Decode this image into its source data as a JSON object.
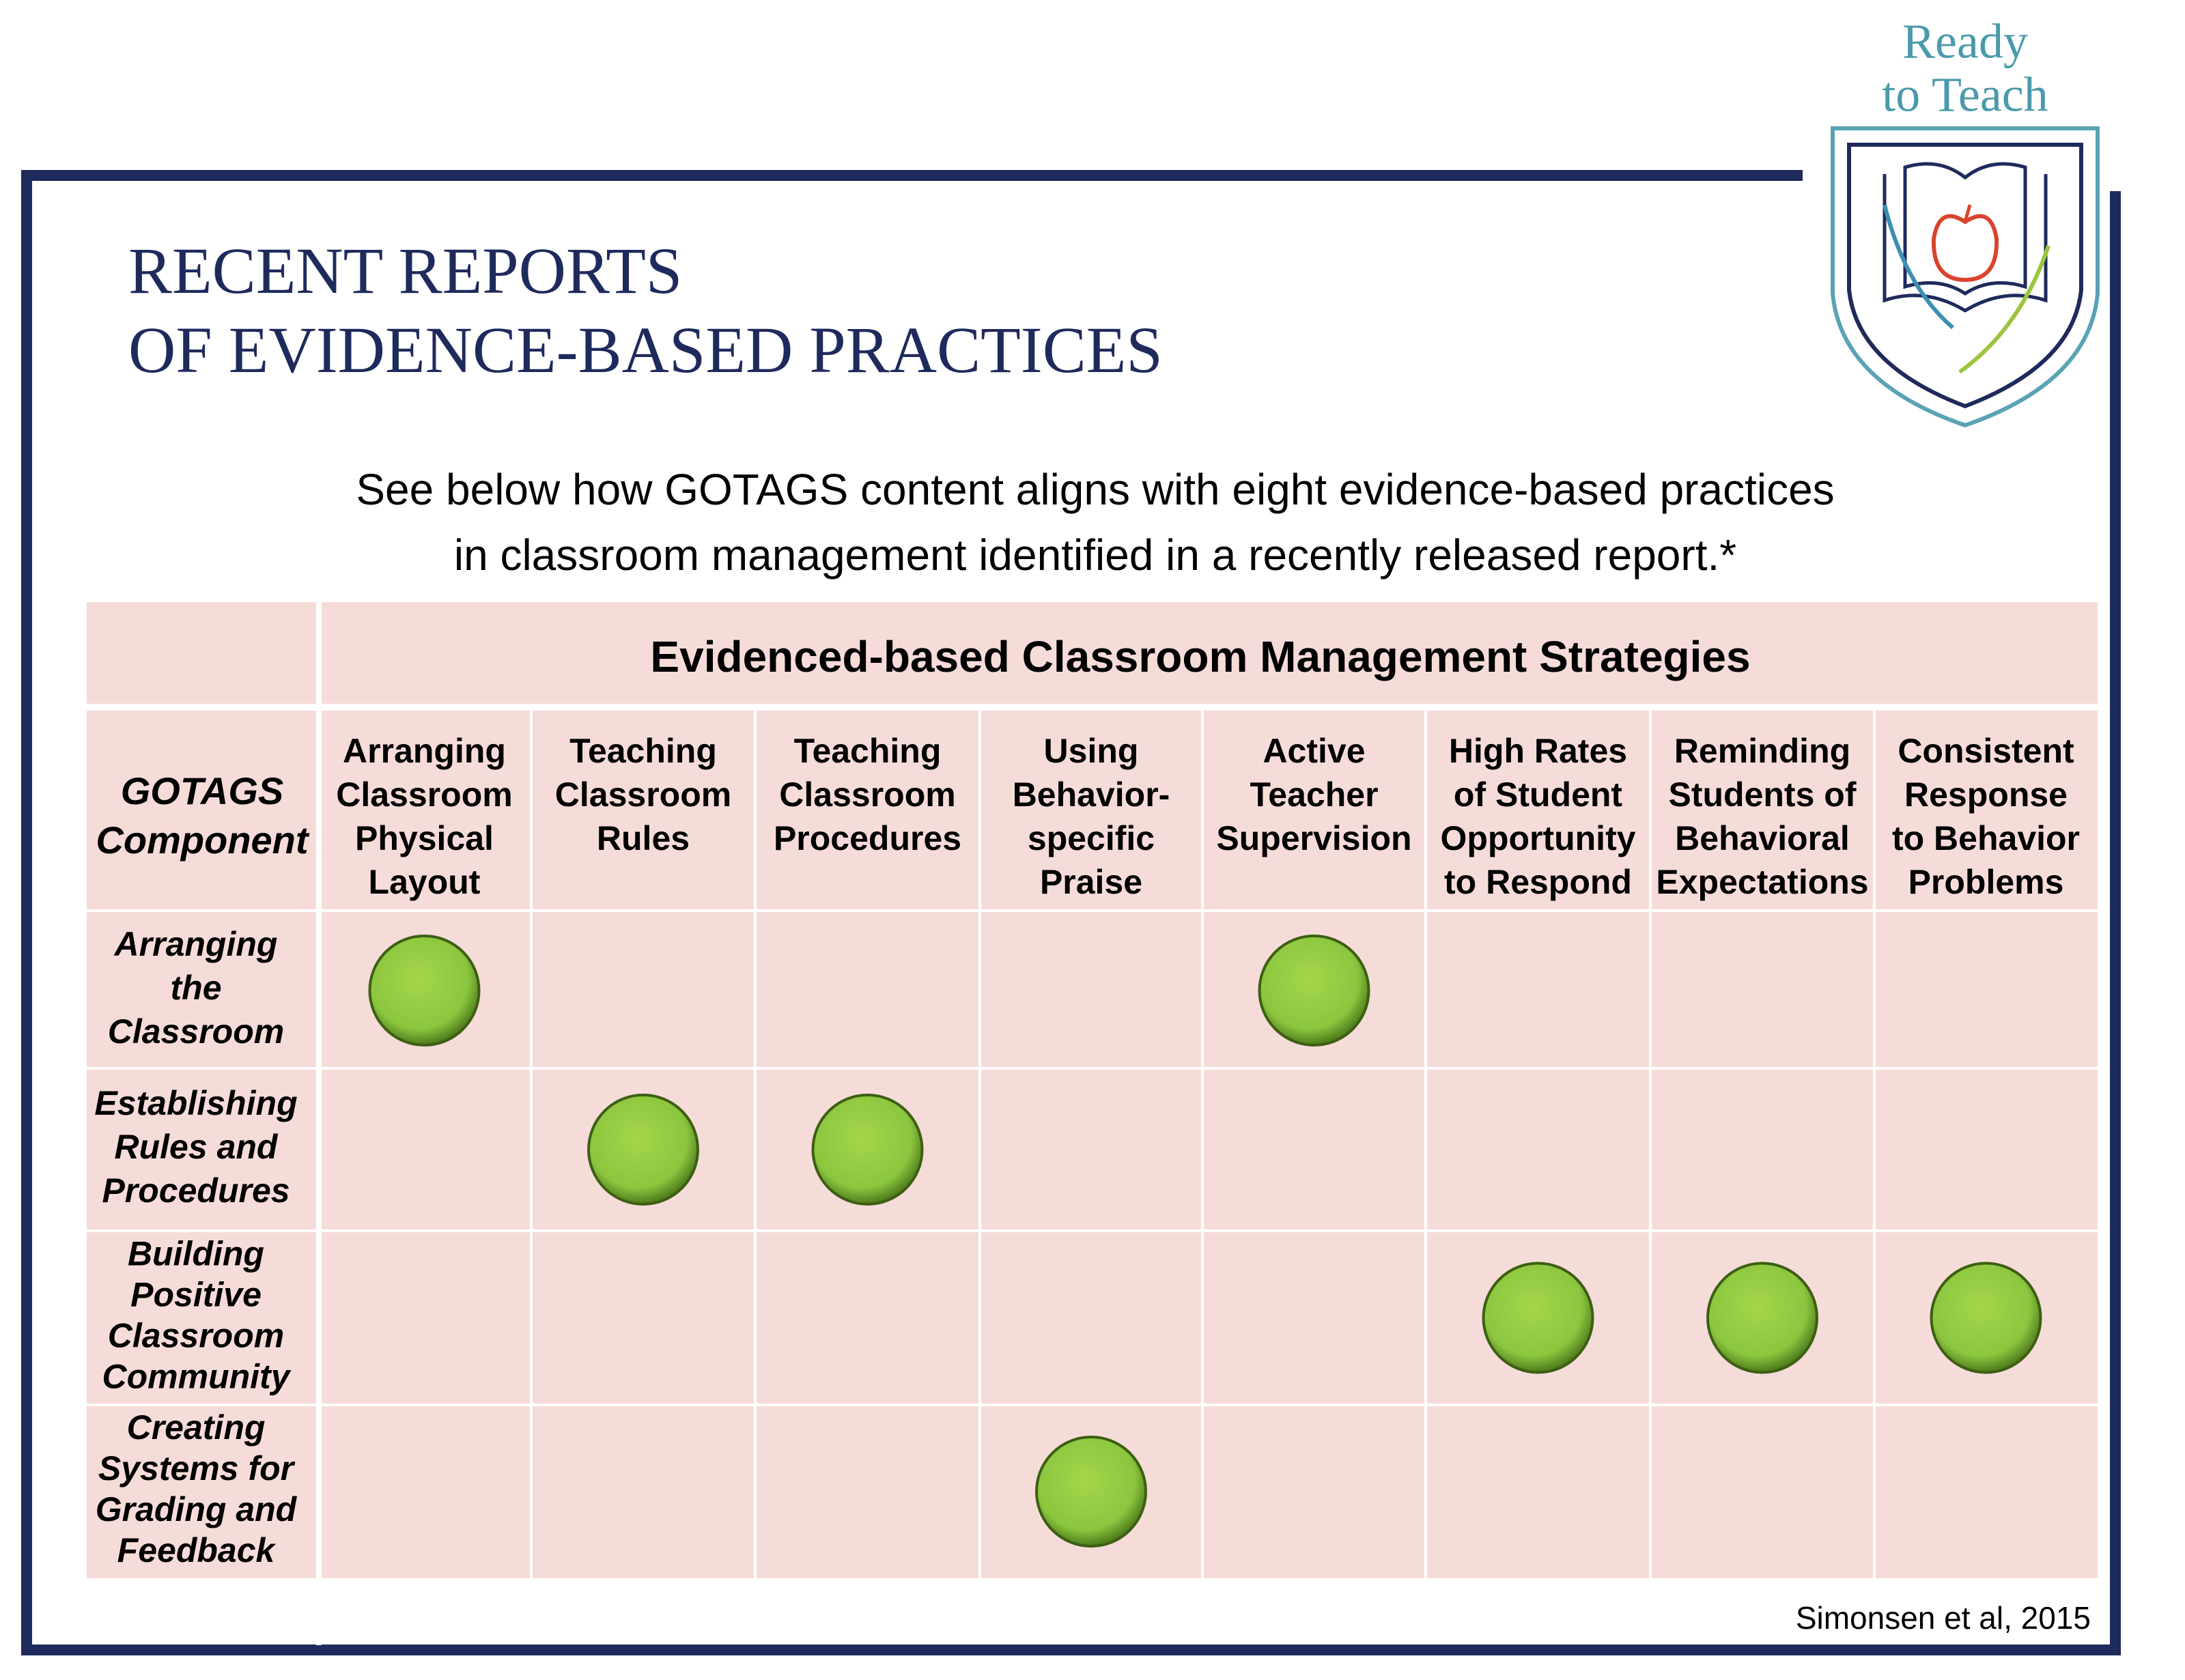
{
  "logo": {
    "lines": [
      "Ready",
      "to Teach"
    ]
  },
  "title": {
    "lines": [
      "RECENT REPORTS",
      "OF EVIDENCE-BASED PRACTICES"
    ]
  },
  "intro": {
    "lines": [
      "See below how GOTAGS content aligns with eight evidence-based practices",
      "in classroom management identified in a recently released report.*"
    ]
  },
  "table": {
    "heading": "Evidenced-based Classroom Management Strategies",
    "corner": [
      "GOTAGS",
      "Component"
    ],
    "columns": [
      [
        "Arranging",
        "Classroom",
        "Physical",
        "Layout"
      ],
      [
        "Teaching",
        "Classroom",
        "Rules"
      ],
      [
        "Teaching",
        "Classroom",
        "Procedures"
      ],
      [
        "Using",
        "Behavior-",
        "specific",
        "Praise"
      ],
      [
        "Active",
        "Teacher",
        "Supervision"
      ],
      [
        "High Rates",
        "of Student",
        "Opportunity",
        "to Respond"
      ],
      [
        "Reminding",
        "Students of",
        "Behavioral",
        "Expectations"
      ],
      [
        "Consistent",
        "Response",
        "to Behavior",
        "Problems"
      ]
    ],
    "rows": [
      {
        "label": [
          "Arranging",
          "the",
          "Classroom"
        ],
        "marks": [
          true,
          false,
          false,
          false,
          true,
          false,
          false,
          false
        ]
      },
      {
        "label": [
          "Establishing",
          "Rules and",
          "Procedures"
        ],
        "marks": [
          false,
          true,
          true,
          false,
          false,
          false,
          false,
          false
        ]
      },
      {
        "label": [
          "Building",
          "Positive",
          "Classroom",
          "Community"
        ],
        "marks": [
          false,
          false,
          false,
          false,
          false,
          true,
          true,
          true
        ]
      },
      {
        "label": [
          "Creating",
          "Systems for",
          "Grading and",
          "Feedback"
        ],
        "marks": [
          false,
          false,
          false,
          true,
          false,
          false,
          false,
          false
        ]
      }
    ]
  },
  "citation": "Simonsen et al, 2015"
}
